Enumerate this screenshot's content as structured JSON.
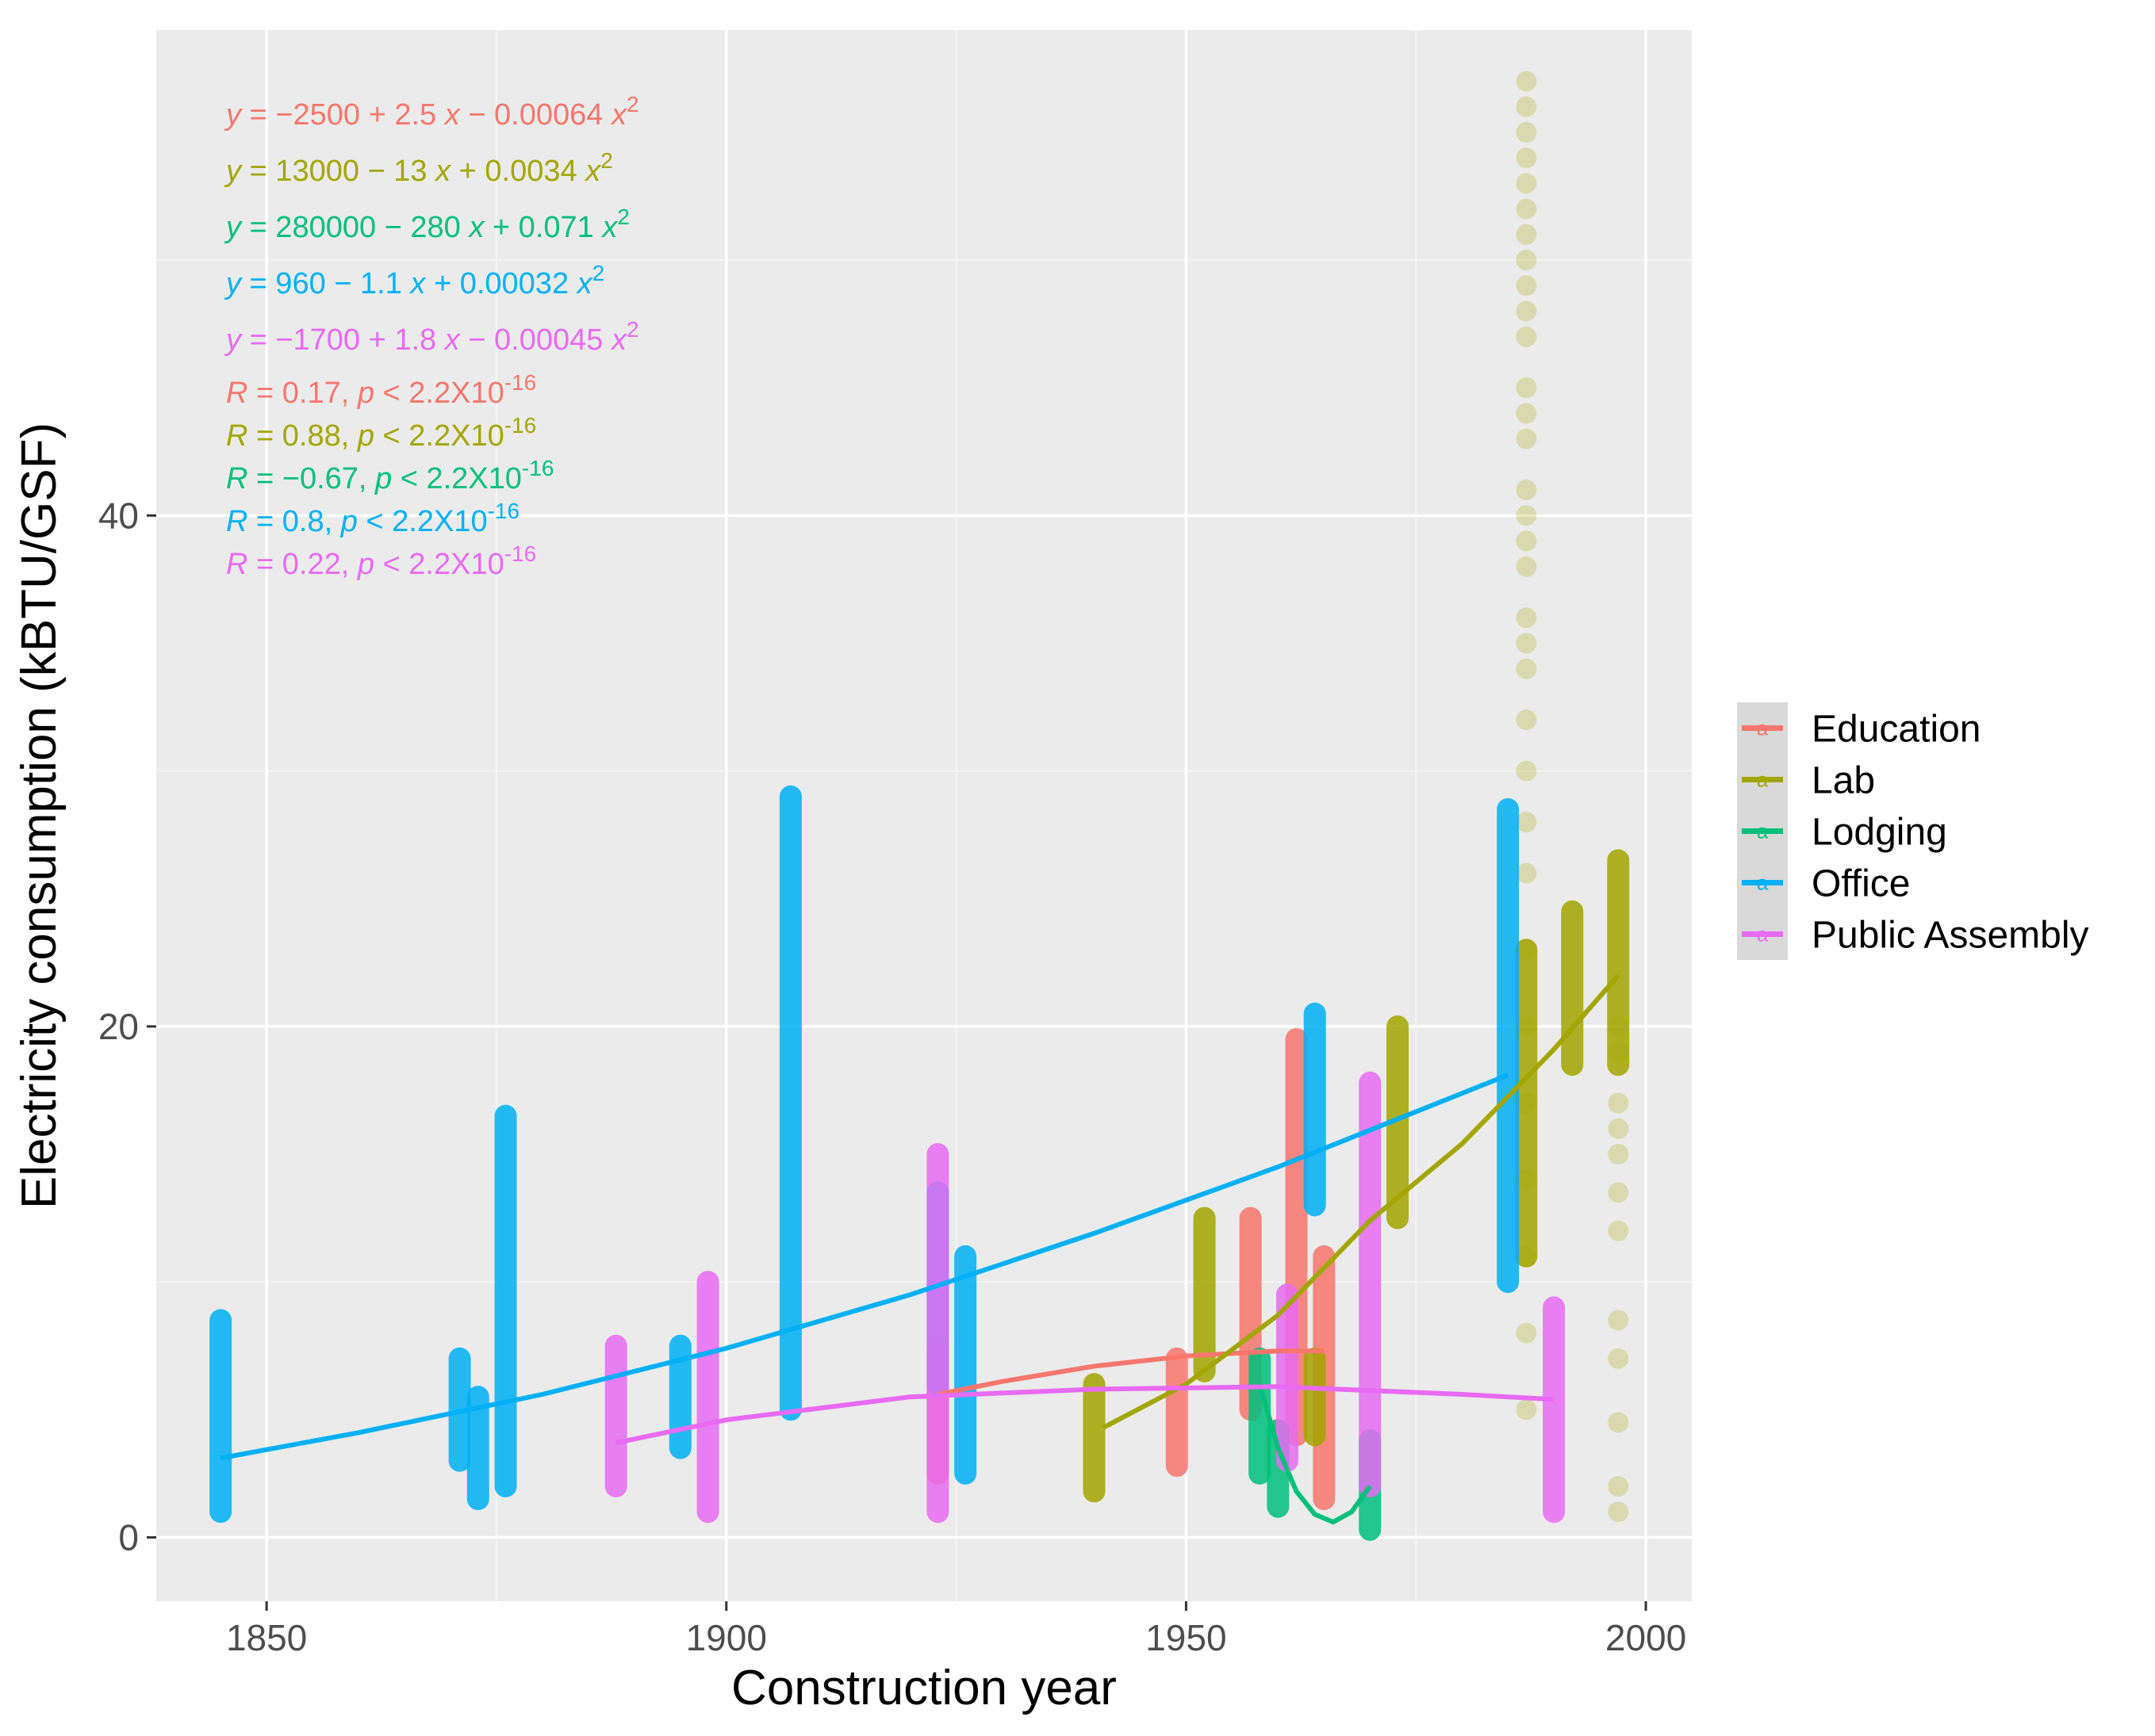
{
  "chart_data": {
    "type": "scatter",
    "xlabel": "Construction year",
    "ylabel": "Electricity consumption (kBTU/GSF)",
    "xlim": [
      1838,
      2005
    ],
    "ylim": [
      -2.5,
      59
    ],
    "x_ticks": [
      1850,
      1900,
      1950,
      2000
    ],
    "x_tick_labels": [
      "1850",
      "1900",
      "1950",
      "2000"
    ],
    "y_ticks": [
      0,
      20,
      40
    ],
    "y_tick_labels": [
      "0",
      "20",
      "40"
    ],
    "grid": true,
    "legend_position": "right",
    "legend_symbol": "a",
    "series": [
      {
        "name": "Education",
        "color": "#F8766D",
        "bars": [
          [
            1923,
            2.5,
            7.5
          ],
          [
            1949,
            2.8,
            7.0
          ],
          [
            1957,
            5.0,
            12.5
          ],
          [
            1962,
            4.0,
            19.5
          ],
          [
            1965,
            1.5,
            11.0
          ]
        ],
        "fit": [
          [
            1923,
            5.6
          ],
          [
            1930,
            6.1
          ],
          [
            1940,
            6.7
          ],
          [
            1950,
            7.1
          ],
          [
            1960,
            7.3
          ],
          [
            1965,
            7.3
          ]
        ],
        "equation": {
          "lhs": "y",
          "rhs_parts": [
            {
              "t": " = −2500 + 2.5 "
            },
            {
              "t": "x",
              "i": true
            },
            {
              "t": " − 0.00064 "
            },
            {
              "t": "x",
              "i": true
            },
            {
              "t": "2",
              "sup": true
            }
          ]
        },
        "stat": {
          "parts": [
            {
              "t": "R",
              "i": true
            },
            {
              "t": " = 0.17, "
            },
            {
              "t": "p",
              "i": true
            },
            {
              "t": " < 2.2X10"
            },
            {
              "t": "-16",
              "sup": true
            }
          ]
        }
      },
      {
        "name": "Lab",
        "color": "#A3A500",
        "bars": [
          [
            1940,
            1.8,
            6.0
          ],
          [
            1952,
            6.5,
            12.5
          ],
          [
            1964,
            4.0,
            7.0
          ],
          [
            1973,
            12.5,
            20.0
          ],
          [
            1987,
            11.0,
            23.0
          ],
          [
            1992,
            18.5,
            24.5
          ],
          [
            1997,
            18.5,
            26.5
          ]
        ],
        "scatter_x": 1987,
        "scatter_y": [
          5,
          8,
          11,
          14,
          17,
          20,
          23,
          26,
          28,
          30,
          32,
          34,
          35,
          36,
          38,
          39,
          40,
          41,
          43,
          44,
          45,
          47,
          48,
          49,
          50,
          51,
          52,
          53,
          54,
          55,
          56,
          57
        ],
        "scatter2_x": 1997,
        "scatter2_y": [
          1,
          2,
          4.5,
          7,
          8.5,
          12,
          13.5,
          15,
          16,
          17,
          19,
          20
        ],
        "fit": [
          [
            1941,
            4.3
          ],
          [
            1950,
            6.0
          ],
          [
            1960,
            8.7
          ],
          [
            1970,
            12.4
          ],
          [
            1980,
            15.4
          ],
          [
            1990,
            19.1
          ],
          [
            1997,
            22.0
          ]
        ],
        "equation": {
          "lhs": "y",
          "rhs_parts": [
            {
              "t": " = 13000 − 13 "
            },
            {
              "t": "x",
              "i": true
            },
            {
              "t": " + 0.0034 "
            },
            {
              "t": "x",
              "i": true
            },
            {
              "t": "2",
              "sup": true
            }
          ]
        },
        "stat": {
          "parts": [
            {
              "t": "R",
              "i": true
            },
            {
              "t": " = 0.88, "
            },
            {
              "t": "p",
              "i": true
            },
            {
              "t": " < 2.2X10"
            },
            {
              "t": "-16",
              "sup": true
            }
          ]
        }
      },
      {
        "name": "Lodging",
        "color": "#00BF7D",
        "bars": [
          [
            1958,
            2.5,
            7.0
          ],
          [
            1960,
            1.2,
            4.2
          ],
          [
            1970,
            0.3,
            3.8
          ]
        ],
        "fit": [
          [
            1958,
            6.0
          ],
          [
            1960,
            3.5
          ],
          [
            1962,
            1.8
          ],
          [
            1964,
            0.9
          ],
          [
            1966,
            0.6
          ],
          [
            1968,
            1.0
          ],
          [
            1970,
            2.0
          ]
        ],
        "equation": {
          "lhs": "y",
          "rhs_parts": [
            {
              "t": " = 280000 − 280 "
            },
            {
              "t": "x",
              "i": true
            },
            {
              "t": " + 0.071 "
            },
            {
              "t": "x",
              "i": true
            },
            {
              "t": "2",
              "sup": true
            }
          ]
        },
        "stat": {
          "parts": [
            {
              "t": "R",
              "i": true
            },
            {
              "t": " = −0.67, "
            },
            {
              "t": "p",
              "i": true
            },
            {
              "t": " < 2.2X10"
            },
            {
              "t": "-16",
              "sup": true
            }
          ]
        }
      },
      {
        "name": "Office",
        "color": "#00B0F6",
        "bars": [
          [
            1845,
            1.0,
            8.5
          ],
          [
            1871,
            3.0,
            7.0
          ],
          [
            1873,
            1.5,
            5.5
          ],
          [
            1876,
            2.0,
            16.5
          ],
          [
            1895,
            3.5,
            7.5
          ],
          [
            1907,
            5.0,
            29.0
          ],
          [
            1923,
            6.0,
            13.5
          ],
          [
            1926,
            2.5,
            11.0
          ],
          [
            1964,
            13.0,
            20.5
          ],
          [
            1985,
            10.0,
            28.5
          ]
        ],
        "fit": [
          [
            1845,
            3.1
          ],
          [
            1860,
            4.1
          ],
          [
            1880,
            5.6
          ],
          [
            1900,
            7.4
          ],
          [
            1920,
            9.5
          ],
          [
            1940,
            11.9
          ],
          [
            1960,
            14.5
          ],
          [
            1985,
            18.1
          ]
        ],
        "equation": {
          "lhs": "y",
          "rhs_parts": [
            {
              "t": " = 960 − 1.1 "
            },
            {
              "t": "x",
              "i": true
            },
            {
              "t": " + 0.00032 "
            },
            {
              "t": "x",
              "i": true
            },
            {
              "t": "2",
              "sup": true
            }
          ]
        },
        "stat": {
          "parts": [
            {
              "t": "R",
              "i": true
            },
            {
              "t": " = 0.8, "
            },
            {
              "t": "p",
              "i": true
            },
            {
              "t": " < 2.2X10"
            },
            {
              "t": "-16",
              "sup": true
            }
          ]
        }
      },
      {
        "name": "Public Assembly",
        "color": "#E76BF3",
        "bars": [
          [
            1888,
            2.0,
            7.5
          ],
          [
            1898,
            1.0,
            10.0
          ],
          [
            1923,
            1.0,
            15.0
          ],
          [
            1961,
            3.0,
            9.5
          ],
          [
            1970,
            2.0,
            17.8
          ],
          [
            1990,
            1.0,
            9.0
          ]
        ],
        "fit": [
          [
            1888,
            3.7
          ],
          [
            1900,
            4.6
          ],
          [
            1920,
            5.5
          ],
          [
            1940,
            5.8
          ],
          [
            1960,
            5.9
          ],
          [
            1980,
            5.6
          ],
          [
            1990,
            5.4
          ]
        ],
        "equation": {
          "lhs": "y",
          "rhs_parts": [
            {
              "t": " = −1700 + 1.8 "
            },
            {
              "t": "x",
              "i": true
            },
            {
              "t": " − 0.00045 "
            },
            {
              "t": "x",
              "i": true
            },
            {
              "t": "2",
              "sup": true
            }
          ]
        },
        "stat": {
          "parts": [
            {
              "t": "R",
              "i": true
            },
            {
              "t": " = 0.22, "
            },
            {
              "t": "p",
              "i": true
            },
            {
              "t": " < 2.2X10"
            },
            {
              "t": "-16",
              "sup": true
            }
          ]
        }
      }
    ]
  }
}
